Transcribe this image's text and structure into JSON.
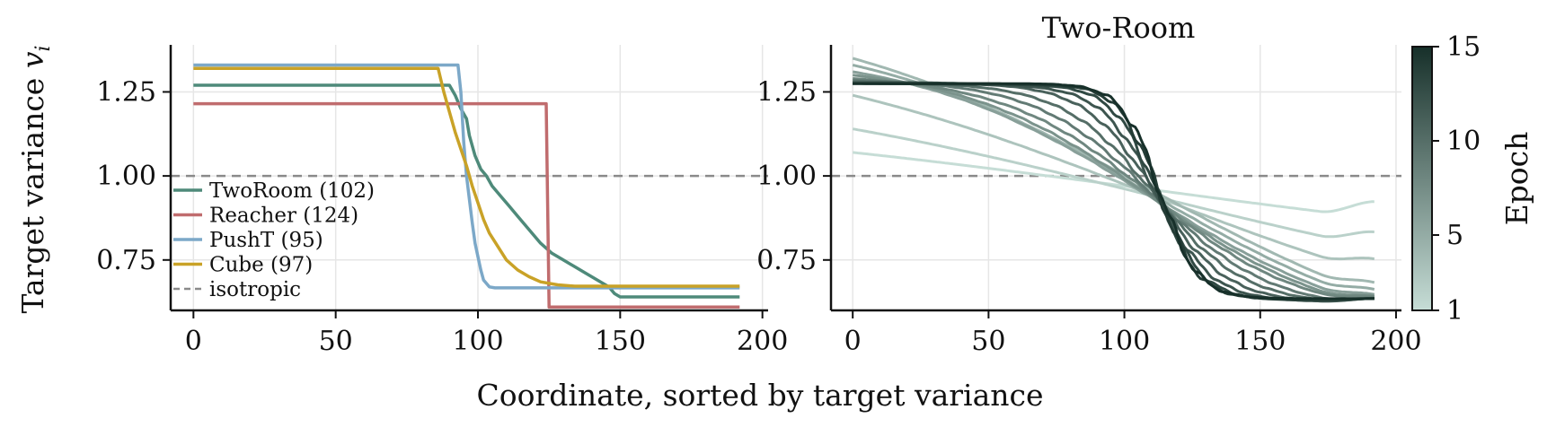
{
  "chart_data": [
    {
      "type": "line",
      "title": "",
      "xlabel": "Coordinate, sorted by target variance",
      "ylabel": "Target variance v_i",
      "ylabel_main": "Target variance ",
      "ylabel_symbol": "v",
      "ylabel_sub": "i",
      "xlim": [
        -8,
        202
      ],
      "ylim": [
        0.6,
        1.39
      ],
      "xticks": [
        0,
        50,
        100,
        150,
        200
      ],
      "yticks": [
        0.75,
        1.0,
        1.25
      ],
      "xtick_labels": [
        "0",
        "50",
        "100",
        "150",
        "200"
      ],
      "ytick_labels": [
        "0.75",
        "1.00",
        "1.25"
      ],
      "grid": true,
      "legend_position": "lower-left",
      "series": [
        {
          "name": "TwoRoom (102)",
          "color": "#4e8a7a",
          "x": [
            0,
            90,
            92,
            94,
            96,
            97,
            99,
            101,
            103,
            105,
            108,
            111,
            114,
            118,
            122,
            126,
            130,
            134,
            138,
            142,
            146,
            148,
            150,
            192
          ],
          "y": [
            1.27,
            1.27,
            1.24,
            1.2,
            1.17,
            1.12,
            1.06,
            1.02,
            1.0,
            0.97,
            0.94,
            0.91,
            0.88,
            0.84,
            0.8,
            0.77,
            0.75,
            0.73,
            0.71,
            0.69,
            0.67,
            0.65,
            0.64,
            0.64
          ]
        },
        {
          "name": "Reacher (124)",
          "color": "#c06c6e",
          "x": [
            0,
            124,
            125,
            192
          ],
          "y": [
            1.215,
            1.215,
            0.61,
            0.61
          ]
        },
        {
          "name": "PushT (95)",
          "color": "#7ca8c8",
          "x": [
            0,
            93,
            94,
            95,
            96,
            97,
            98,
            99,
            100,
            101,
            102,
            104,
            106,
            192
          ],
          "y": [
            1.33,
            1.33,
            1.25,
            1.1,
            1.0,
            0.93,
            0.86,
            0.8,
            0.76,
            0.72,
            0.69,
            0.67,
            0.667,
            0.667
          ]
        },
        {
          "name": "Cube (97)",
          "color": "#c9a227",
          "x": [
            0,
            86,
            88,
            90,
            92,
            94,
            96,
            98,
            100,
            102,
            104,
            107,
            110,
            114,
            118,
            122,
            128,
            134,
            192
          ],
          "y": [
            1.32,
            1.32,
            1.25,
            1.19,
            1.13,
            1.08,
            1.03,
            0.97,
            0.92,
            0.87,
            0.83,
            0.79,
            0.75,
            0.72,
            0.7,
            0.685,
            0.676,
            0.672,
            0.672
          ]
        },
        {
          "name": "isotropic",
          "color": "#8a8a8a",
          "dashed": true,
          "x": [
            -8,
            202
          ],
          "y": [
            1.0,
            1.0
          ]
        }
      ]
    },
    {
      "type": "line",
      "title": "Two-Room",
      "xlabel": "",
      "ylabel": "",
      "xlim": [
        -8,
        202
      ],
      "ylim": [
        0.6,
        1.39
      ],
      "xticks": [
        0,
        50,
        100,
        150,
        200
      ],
      "yticks": [
        0.75,
        1.0,
        1.25
      ],
      "xtick_labels": [
        "0",
        "50",
        "100",
        "150",
        "200"
      ],
      "ytick_labels": [
        "0.75",
        "1.00",
        "1.25"
      ],
      "grid": true,
      "isotropic_y": 1.0,
      "isotropic_color": "#8a8a8a",
      "color_scale": {
        "label": "Epoch",
        "min": 1,
        "max": 15,
        "ticks": [
          1,
          5,
          10,
          15
        ],
        "tick_labels": [
          "1",
          "5",
          "10",
          "15"
        ],
        "colors": [
          "#c6ddd6",
          "#17302a"
        ]
      },
      "epochs": [
        {
          "epoch": 1,
          "start": 1.07,
          "end": 0.92
        },
        {
          "epoch": 2,
          "start": 1.14,
          "end": 0.83
        },
        {
          "epoch": 3,
          "start": 1.24,
          "end": 0.75
        },
        {
          "epoch": 4,
          "start": 1.35,
          "end": 0.68
        },
        {
          "epoch": 5,
          "start": 1.33,
          "end": 0.66
        },
        {
          "epoch": 6,
          "start": 1.31,
          "end": 0.645
        },
        {
          "epoch": 7,
          "start": 1.3,
          "end": 0.64
        },
        {
          "epoch": 8,
          "start": 1.29,
          "end": 0.64
        },
        {
          "epoch": 9,
          "start": 1.285,
          "end": 0.635
        },
        {
          "epoch": 10,
          "start": 1.28,
          "end": 0.635
        },
        {
          "epoch": 11,
          "start": 1.28,
          "end": 0.635
        },
        {
          "epoch": 12,
          "start": 1.275,
          "end": 0.635
        },
        {
          "epoch": 13,
          "start": 1.275,
          "end": 0.635
        },
        {
          "epoch": 14,
          "start": 1.275,
          "end": 0.635
        },
        {
          "epoch": 15,
          "start": 1.275,
          "end": 0.635
        }
      ]
    }
  ]
}
